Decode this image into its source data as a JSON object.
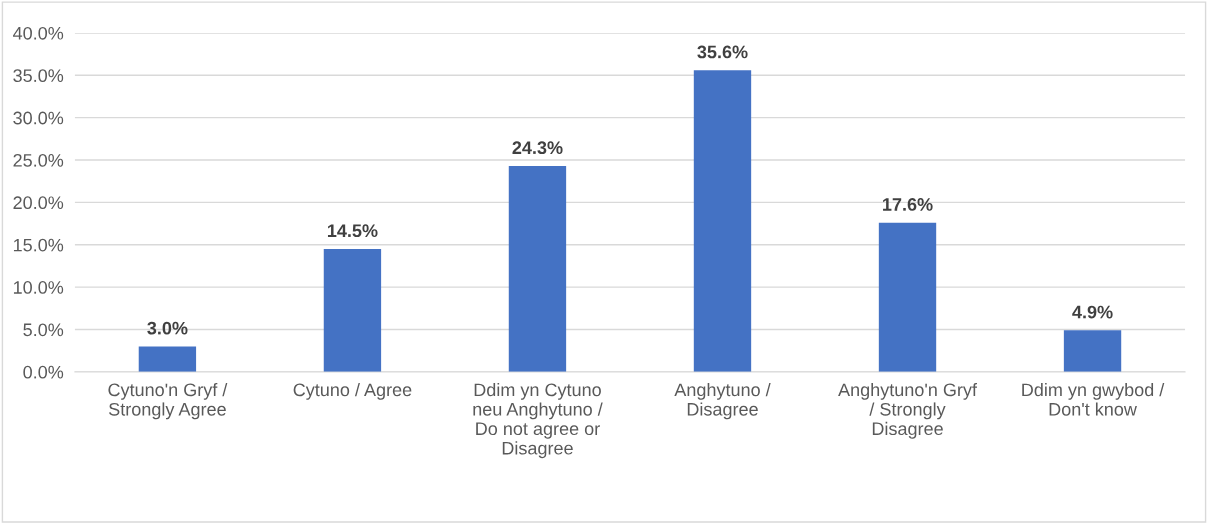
{
  "chart_data": {
    "type": "bar",
    "categories": [
      "Cytuno'n Gryf /\nStrongly Agree",
      "Cytuno / Agree",
      "Ddim yn Cytuno\nneu Anghytuno /\nDo not agree or\nDisagree",
      "Anghytuno /\nDisagree",
      "Anghytuno'n Gryf\n/ Strongly\nDisagree",
      "Ddim yn gwybod /\nDon't know"
    ],
    "values": [
      3.0,
      14.5,
      24.3,
      35.6,
      17.6,
      4.9
    ],
    "value_labels": [
      "3.0%",
      "14.5%",
      "24.3%",
      "35.6%",
      "17.6%",
      "4.9%"
    ],
    "color": "#4472c4",
    "ylim": [
      0,
      40
    ],
    "yticks": [
      {
        "value": 0,
        "label": "0.0%"
      },
      {
        "value": 5,
        "label": "5.0%"
      },
      {
        "value": 10,
        "label": "10.0%"
      },
      {
        "value": 15,
        "label": "15.0%"
      },
      {
        "value": 20,
        "label": "20.0%"
      },
      {
        "value": 25,
        "label": "25.0%"
      },
      {
        "value": 30,
        "label": "30.0%"
      },
      {
        "value": 35,
        "label": "35.0%"
      },
      {
        "value": 40,
        "label": "40.0%"
      }
    ],
    "grid": "y"
  }
}
